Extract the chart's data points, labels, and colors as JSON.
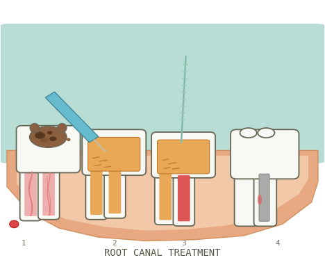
{
  "title": "ROOT CANAL TREATMENT",
  "bg_color": "#ffffff",
  "teal_bg": "#b8ddd4",
  "gum_color": "#e8a882",
  "gum_inner_color": "#f2c8a8",
  "gum_dark": "#d09060",
  "tooth_white": "#f8f8f4",
  "tooth_outline": "#666655",
  "decay_brown": "#8b6040",
  "decay_dark": "#5a3820",
  "pulp_pink": "#e88080",
  "nerve_pink": "#e87878",
  "fill_orange": "#e8a855",
  "fill_dark": "#c07830",
  "instrument_teal": "#66bbcc",
  "instrument_outline": "#448899",
  "file_color": "#99ccbb",
  "silver": "#aaaaaa",
  "silver_dark": "#888888",
  "red_blood": "#dd5555",
  "label_color": "#777766",
  "title_color": "#555544",
  "lw": 1.3
}
